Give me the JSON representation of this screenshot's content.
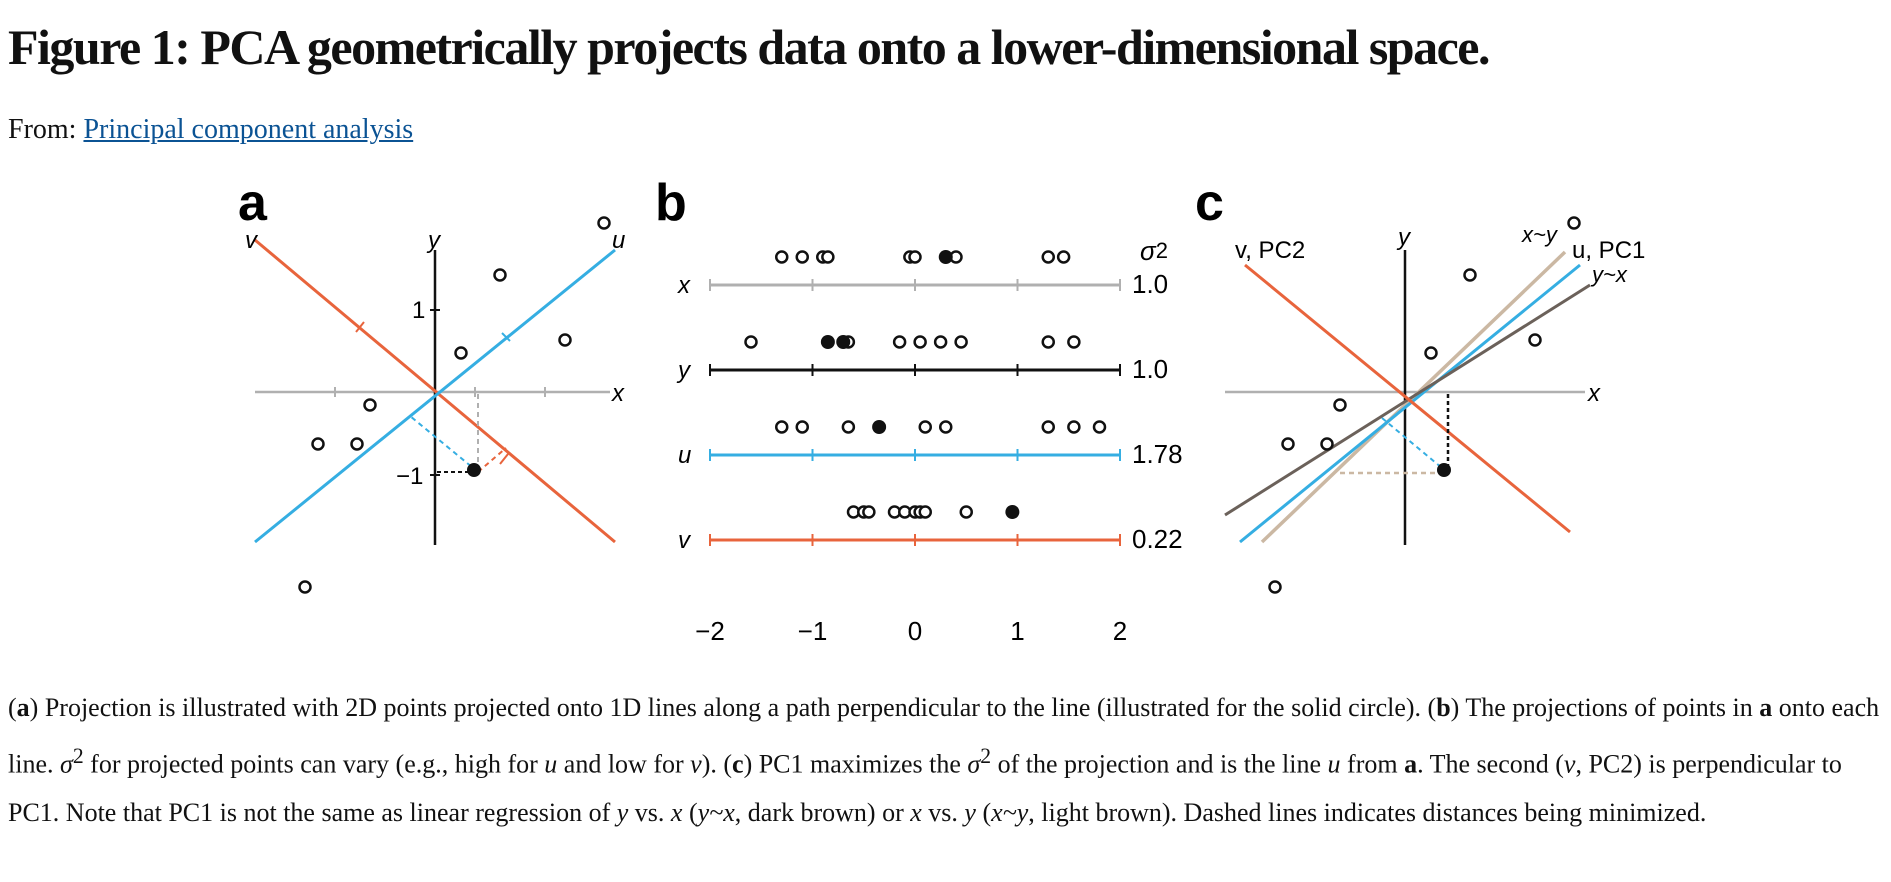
{
  "title": "Figure 1: PCA geometrically projects data onto a lower-dimensional space.",
  "from_prefix": "From:",
  "from_link": "Principal component analysis",
  "colors": {
    "orange": "#e8643c",
    "blue": "#35aee2",
    "gray": "#b0b0b0",
    "black": "#111111",
    "dark_brown": "#6b615a",
    "light_brown": "#cbb8a3",
    "link": "#0b5394"
  },
  "panel_a": {
    "letter": "a",
    "labels": {
      "v": "v",
      "y": "y",
      "u": "u",
      "x": "x"
    },
    "ticks": {
      "pos": "1",
      "neg": "−1"
    },
    "points": [
      [
        0.5,
        0.9
      ],
      [
        -0.5,
        -0.1
      ],
      [
        -0.9,
        -0.4
      ],
      [
        -0.6,
        -0.4
      ],
      [
        1.3,
        1.3
      ],
      [
        -1,
        -1.5
      ],
      [
        0.2,
        0.3
      ],
      [
        1,
        0.4
      ]
    ],
    "solid_point": [
      0.3,
      -0.6
    ]
  },
  "panel_b": {
    "letter": "b",
    "sigma_label": "σ",
    "sigma_sup": "2",
    "rows": [
      {
        "label": "x",
        "variance": "1.0",
        "color": "#b0b0b0",
        "values": [
          -1.3,
          -1.1,
          -0.9,
          -0.85,
          -0.05,
          0,
          0.4,
          1.3,
          1.45
        ],
        "solid": [
          0.3
        ]
      },
      {
        "label": "y",
        "variance": "1.0",
        "color": "#111111",
        "values": [
          -1.6,
          -0.65,
          -0.15,
          0.05,
          0.25,
          0.45,
          1.3,
          1.55
        ],
        "solid": [
          -0.85,
          -0.7
        ]
      },
      {
        "label": "u",
        "variance": "1.78",
        "color": "#35aee2",
        "values": [
          -1.3,
          -1.1,
          -0.65,
          0.1,
          0.3,
          1.3,
          1.55,
          1.8
        ],
        "solid": [
          -0.35
        ]
      },
      {
        "label": "v",
        "variance": "0.22",
        "color": "#e8643c",
        "values": [
          -0.6,
          -0.5,
          -0.45,
          -0.2,
          -0.1,
          0,
          0.05,
          0.1,
          0.5
        ],
        "solid": [
          0.95
        ]
      }
    ],
    "axis_ticks": [
      "−2",
      "−1",
      "0",
      "1",
      "2"
    ]
  },
  "panel_c": {
    "letter": "c",
    "labels": {
      "v_pc2": "v, PC2",
      "y": "y",
      "x_y": "x~y",
      "u_pc1": "u, PC1",
      "y_x": "y~x",
      "x": "x"
    },
    "points": [
      [
        0.5,
        0.9
      ],
      [
        -0.5,
        -0.1
      ],
      [
        -0.9,
        -0.4
      ],
      [
        -0.6,
        -0.4
      ],
      [
        1.3,
        1.3
      ],
      [
        -1,
        -1.5
      ],
      [
        0.2,
        0.3
      ],
      [
        1,
        0.4
      ]
    ],
    "solid_point": [
      0.3,
      -0.6
    ]
  },
  "caption": {
    "p1": "(",
    "a1": "a",
    "p2": ") Projection is illustrated with 2D points projected onto 1D lines along a path perpendicular to the line (illustrated for the solid circle). (",
    "b1": "b",
    "p3": ") The projections of points in ",
    "a2": "a",
    "p4": " onto each line. ",
    "sigma": "σ",
    "sup": "2",
    "p5": " for projected points can vary (e.g., high for ",
    "u1": "u",
    "p6": " and low for ",
    "v1": "v",
    "p7": "). (",
    "c1": "c",
    "p8": ") PC1 maximizes the ",
    "sigma2": "σ",
    "sup2": "2",
    "p9": " of the projection and is the line ",
    "u2": "u",
    "p10": " from ",
    "a3": "a",
    "p11": ". The second (",
    "v2": "v",
    "p12": ", PC2) is perpendicular to PC1. Note that PC1 is not the same as linear regression of ",
    "y1": "y",
    "p13": " vs. ",
    "x1": "x",
    "p14": " (",
    "yx": "y~x",
    "p15": ", dark brown) or ",
    "x2": "x",
    "p16": " vs. ",
    "y2": "y",
    "p17": " (",
    "xy": "x~y",
    "p18": ", light brown). Dashed lines indicates distances being minimized."
  }
}
